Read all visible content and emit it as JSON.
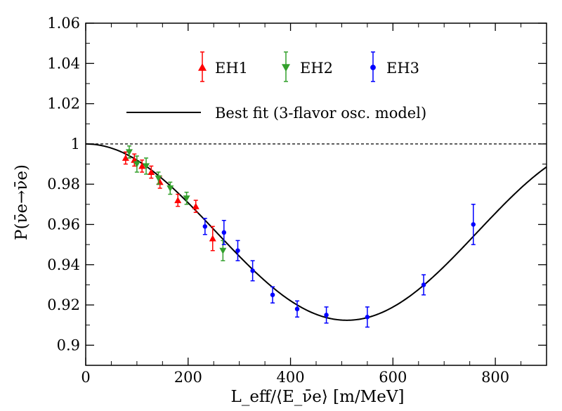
{
  "chart_data": {
    "type": "scatter",
    "xlabel": "L_eff/⟨E_ν̄e⟩ [m/MeV]",
    "ylabel": "P(ν̄e→ν̄e)",
    "xlim": [
      0,
      900
    ],
    "ylim": [
      0.89,
      1.06
    ],
    "x_ticks": [
      0,
      200,
      400,
      600,
      800
    ],
    "x_tick_labels": [
      "0",
      "200",
      "400",
      "600",
      "800"
    ],
    "y_ticks": [
      0.9,
      0.92,
      0.94,
      0.96,
      0.98,
      1.0,
      1.02,
      1.04,
      1.06
    ],
    "y_tick_labels": [
      "0.9",
      "0.92",
      "0.94",
      "0.96",
      "0.98",
      "1",
      "1.02",
      "1.04",
      "1.06"
    ],
    "grid": false,
    "reference_line": {
      "y": 1.0,
      "style": "dashed"
    },
    "legend": {
      "placement": "top",
      "entries": [
        {
          "label": "EH1",
          "marker": "triangle-up",
          "color": "#ff0000"
        },
        {
          "label": "EH2",
          "marker": "triangle-down",
          "color": "#33a02c"
        },
        {
          "label": "EH3",
          "marker": "circle",
          "color": "#0000ff"
        },
        {
          "label": "Best fit (3-flavor osc. model)",
          "marker": "line",
          "color": "#000000"
        }
      ]
    },
    "best_fit": {
      "amplitude": 0.0876,
      "period_xmax": 510
    },
    "series": [
      {
        "name": "EH1",
        "marker": "triangle-up",
        "color": "#ff0000",
        "points": [
          {
            "x": 78,
            "y": 0.993,
            "err": 0.003
          },
          {
            "x": 95,
            "y": 0.992,
            "err": 0.003
          },
          {
            "x": 110,
            "y": 0.989,
            "err": 0.003
          },
          {
            "x": 128,
            "y": 0.986,
            "err": 0.003
          },
          {
            "x": 145,
            "y": 0.981,
            "err": 0.003
          },
          {
            "x": 180,
            "y": 0.972,
            "err": 0.003
          },
          {
            "x": 215,
            "y": 0.969,
            "err": 0.003
          },
          {
            "x": 248,
            "y": 0.953,
            "err": 0.006
          }
        ]
      },
      {
        "name": "EH2",
        "marker": "triangle-down",
        "color": "#33a02c",
        "points": [
          {
            "x": 85,
            "y": 0.996,
            "err": 0.003
          },
          {
            "x": 100,
            "y": 0.99,
            "err": 0.004
          },
          {
            "x": 118,
            "y": 0.989,
            "err": 0.004
          },
          {
            "x": 142,
            "y": 0.983,
            "err": 0.003
          },
          {
            "x": 165,
            "y": 0.978,
            "err": 0.003
          },
          {
            "x": 197,
            "y": 0.973,
            "err": 0.003
          },
          {
            "x": 268,
            "y": 0.947,
            "err": 0.005
          }
        ]
      },
      {
        "name": "EH3",
        "marker": "circle",
        "color": "#0000ff",
        "points": [
          {
            "x": 233,
            "y": 0.959,
            "err": 0.004
          },
          {
            "x": 270,
            "y": 0.956,
            "err": 0.006
          },
          {
            "x": 297,
            "y": 0.947,
            "err": 0.005
          },
          {
            "x": 326,
            "y": 0.937,
            "err": 0.005
          },
          {
            "x": 365,
            "y": 0.925,
            "err": 0.004
          },
          {
            "x": 413,
            "y": 0.918,
            "err": 0.004
          },
          {
            "x": 470,
            "y": 0.915,
            "err": 0.004
          },
          {
            "x": 550,
            "y": 0.914,
            "err": 0.005
          },
          {
            "x": 660,
            "y": 0.93,
            "err": 0.005
          },
          {
            "x": 757,
            "y": 0.96,
            "err": 0.01
          }
        ]
      }
    ]
  }
}
